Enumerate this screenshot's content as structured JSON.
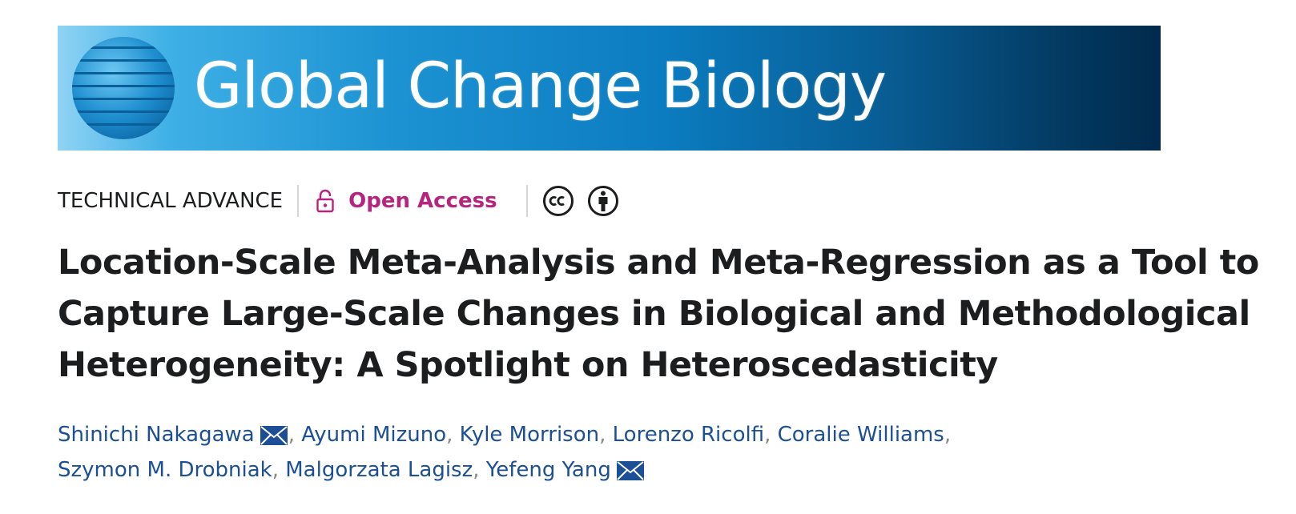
{
  "banner": {
    "journal_name": "Global Change Biology",
    "logo_icon": "globe-stripes-icon",
    "gradient_colors": [
      "#8fd3f4",
      "#1d93d3",
      "#0b7cc0",
      "#03385f",
      "#012a4d"
    ]
  },
  "meta": {
    "article_type": "TECHNICAL ADVANCE",
    "open_access_label": "Open Access",
    "open_access_icon": "unlock-icon",
    "open_access_color": "#b6247d",
    "license_icons": [
      "creative-commons-icon",
      "attribution-icon"
    ]
  },
  "article": {
    "title": "Location-Scale Meta-Analysis and Meta-Regression as a Tool to Capture Large-Scale Changes in Biological and Methodological Heterogeneity: A Spotlight on Heteroscedasticity"
  },
  "authors": {
    "list": [
      {
        "name": "Shinichi Nakagawa",
        "corresponding": true
      },
      {
        "name": "Ayumi Mizuno",
        "corresponding": false
      },
      {
        "name": "Kyle Morrison",
        "corresponding": false
      },
      {
        "name": "Lorenzo Ricolfi",
        "corresponding": false
      },
      {
        "name": "Coralie Williams",
        "corresponding": false
      },
      {
        "name": "Szymon M. Drobniak",
        "corresponding": false
      },
      {
        "name": "Malgorzata Lagisz",
        "corresponding": false
      },
      {
        "name": "Yefeng Yang",
        "corresponding": true
      }
    ],
    "separator": ",",
    "link_color": "#1c4f95",
    "mail_icon": "envelope-icon"
  }
}
